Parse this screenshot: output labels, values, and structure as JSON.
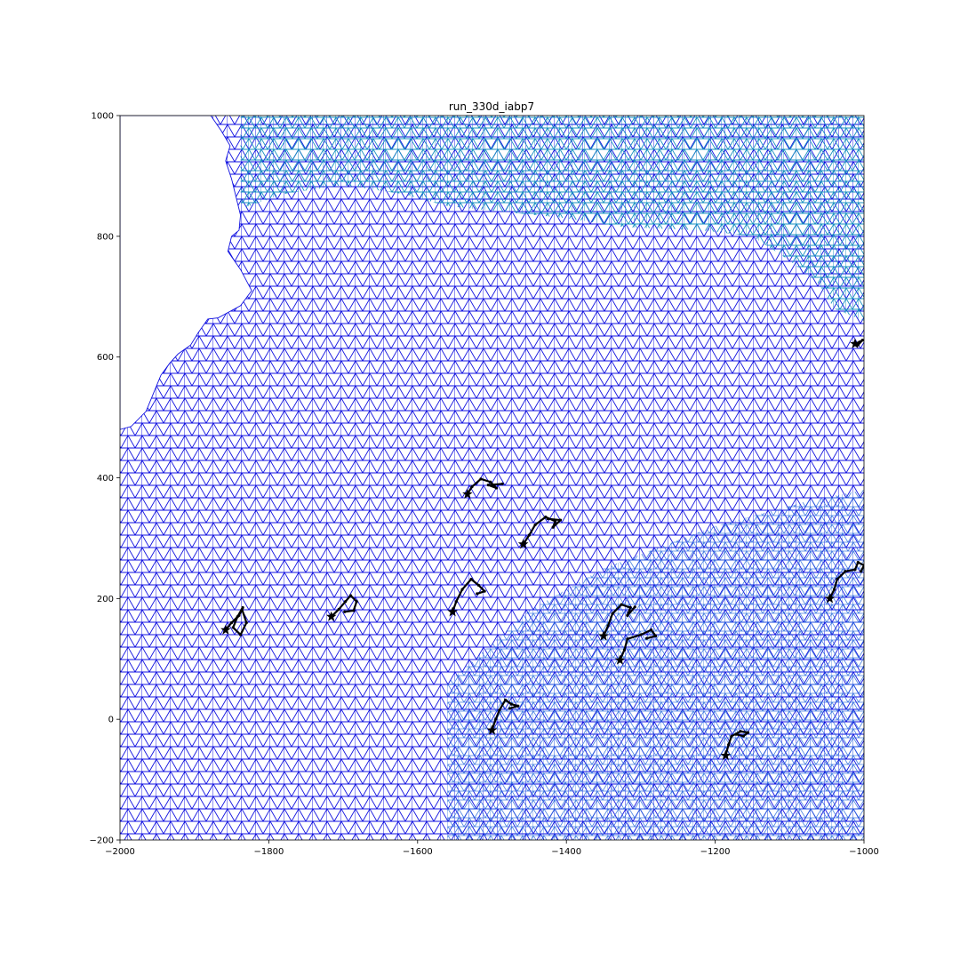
{
  "chart_data": {
    "type": "scatter",
    "title": "run_330d_iabp7",
    "xlabel": "",
    "ylabel": "",
    "xlim": [
      -2000,
      -1000
    ],
    "ylim": [
      -200,
      1000
    ],
    "x_ticks": [
      -2000,
      -1800,
      -1600,
      -1400,
      -1200,
      -1000
    ],
    "y_ticks": [
      -200,
      0,
      200,
      400,
      600,
      800,
      1000
    ],
    "x_tick_labels": [
      "−2000",
      "−1800",
      "−1600",
      "−1400",
      "−1200",
      "−1000"
    ],
    "y_tick_labels": [
      "−200",
      "0",
      "200",
      "400",
      "600",
      "800",
      "1000"
    ],
    "grid": false,
    "legend": "none",
    "background_mesh": {
      "description_colors": {
        "main": "#1010e0",
        "upper_right_region": "#1890c0",
        "lower_right_region": "#2468dc"
      },
      "land_boundary": [
        [
          -1878,
          1000
        ],
        [
          -1864,
          975
        ],
        [
          -1852,
          950
        ],
        [
          -1858,
          925
        ],
        [
          -1850,
          895
        ],
        [
          -1843,
          860
        ],
        [
          -1838,
          835
        ],
        [
          -1840,
          810
        ],
        [
          -1850,
          800
        ],
        [
          -1855,
          775
        ],
        [
          -1838,
          745
        ],
        [
          -1823,
          710
        ],
        [
          -1838,
          685
        ],
        [
          -1868,
          665
        ],
        [
          -1882,
          663
        ],
        [
          -1895,
          640
        ],
        [
          -1905,
          620
        ],
        [
          -1922,
          605
        ],
        [
          -1933,
          590
        ],
        [
          -1945,
          570
        ],
        [
          -1955,
          540
        ],
        [
          -1965,
          510
        ],
        [
          -1985,
          485
        ],
        [
          -2000,
          480
        ]
      ],
      "region_boundary_cyan": [
        [
          -1838,
          845
        ],
        [
          -1780,
          870
        ],
        [
          -1700,
          885
        ],
        [
          -1620,
          870
        ],
        [
          -1560,
          850
        ],
        [
          -1480,
          840
        ],
        [
          -1400,
          830
        ],
        [
          -1320,
          815
        ],
        [
          -1220,
          810
        ],
        [
          -1150,
          800
        ],
        [
          -1100,
          760
        ],
        [
          -1060,
          720
        ],
        [
          -1040,
          680
        ],
        [
          -1000,
          660
        ]
      ]
    },
    "series": [
      {
        "color": "#000000",
        "start": [
          -1858,
          148
        ],
        "points": [
          [
            -1858,
            148
          ],
          [
            -1850,
            160
          ],
          [
            -1840,
            172
          ],
          [
            -1835,
            185
          ],
          [
            -1842,
            170
          ],
          [
            -1848,
            152
          ],
          [
            -1838,
            140
          ],
          [
            -1830,
            160
          ],
          [
            -1836,
            182
          ]
        ]
      },
      {
        "color": "#000000",
        "start": [
          -1716,
          170
        ],
        "points": [
          [
            -1716,
            170
          ],
          [
            -1706,
            182
          ],
          [
            -1697,
            195
          ],
          [
            -1690,
            205
          ],
          [
            -1682,
            195
          ],
          [
            -1686,
            180
          ],
          [
            -1698,
            178
          ]
        ]
      },
      {
        "color": "#000000",
        "start": [
          -1553,
          178
        ],
        "points": [
          [
            -1553,
            178
          ],
          [
            -1548,
            195
          ],
          [
            -1540,
            215
          ],
          [
            -1528,
            232
          ],
          [
            -1518,
            222
          ],
          [
            -1510,
            212
          ],
          [
            -1520,
            208
          ]
        ]
      },
      {
        "color": "#000000",
        "start": [
          -1533,
          373
        ],
        "points": [
          [
            -1533,
            373
          ],
          [
            -1527,
            385
          ],
          [
            -1515,
            398
          ],
          [
            -1502,
            393
          ],
          [
            -1494,
            383
          ],
          [
            -1505,
            388
          ],
          [
            -1486,
            390
          ]
        ]
      },
      {
        "color": "#000000",
        "start": [
          -1458,
          290
        ],
        "points": [
          [
            -1458,
            290
          ],
          [
            -1450,
            305
          ],
          [
            -1442,
            322
          ],
          [
            -1428,
            335
          ],
          [
            -1415,
            328
          ],
          [
            -1418,
            318
          ],
          [
            -1408,
            330
          ],
          [
            -1425,
            332
          ]
        ]
      },
      {
        "color": "#000000",
        "start": [
          -1500,
          -18
        ],
        "points": [
          [
            -1500,
            -18
          ],
          [
            -1495,
            0
          ],
          [
            -1490,
            15
          ],
          [
            -1482,
            32
          ],
          [
            -1474,
            25
          ],
          [
            -1465,
            22
          ],
          [
            -1476,
            18
          ]
        ]
      },
      {
        "color": "#000000",
        "start": [
          -1350,
          138
        ],
        "points": [
          [
            -1350,
            138
          ],
          [
            -1344,
            155
          ],
          [
            -1338,
            175
          ],
          [
            -1326,
            190
          ],
          [
            -1314,
            185
          ],
          [
            -1318,
            172
          ],
          [
            -1308,
            186
          ]
        ]
      },
      {
        "color": "#000000",
        "start": [
          -1328,
          98
        ],
        "points": [
          [
            -1328,
            98
          ],
          [
            -1322,
            115
          ],
          [
            -1318,
            133
          ],
          [
            -1300,
            140
          ],
          [
            -1286,
            148
          ],
          [
            -1280,
            138
          ],
          [
            -1292,
            134
          ]
        ]
      },
      {
        "color": "#000000",
        "start": [
          -1186,
          -60
        ],
        "points": [
          [
            -1186,
            -60
          ],
          [
            -1182,
            -42
          ],
          [
            -1178,
            -28
          ],
          [
            -1166,
            -20
          ],
          [
            -1156,
            -22
          ],
          [
            -1162,
            -28
          ],
          [
            -1172,
            -25
          ]
        ]
      },
      {
        "color": "#000000",
        "start": [
          -1046,
          200
        ],
        "points": [
          [
            -1046,
            200
          ],
          [
            -1040,
            215
          ],
          [
            -1036,
            232
          ],
          [
            -1025,
            245
          ],
          [
            -1012,
            248
          ],
          [
            -1008,
            260
          ],
          [
            -1000,
            255
          ],
          [
            -1004,
            245
          ]
        ]
      },
      {
        "color": "#000000",
        "start": [
          -1012,
          622
        ],
        "points": [
          [
            -1012,
            622
          ],
          [
            -1006,
            625
          ],
          [
            -1002,
            628
          ],
          [
            -1008,
            620
          ]
        ]
      }
    ]
  }
}
